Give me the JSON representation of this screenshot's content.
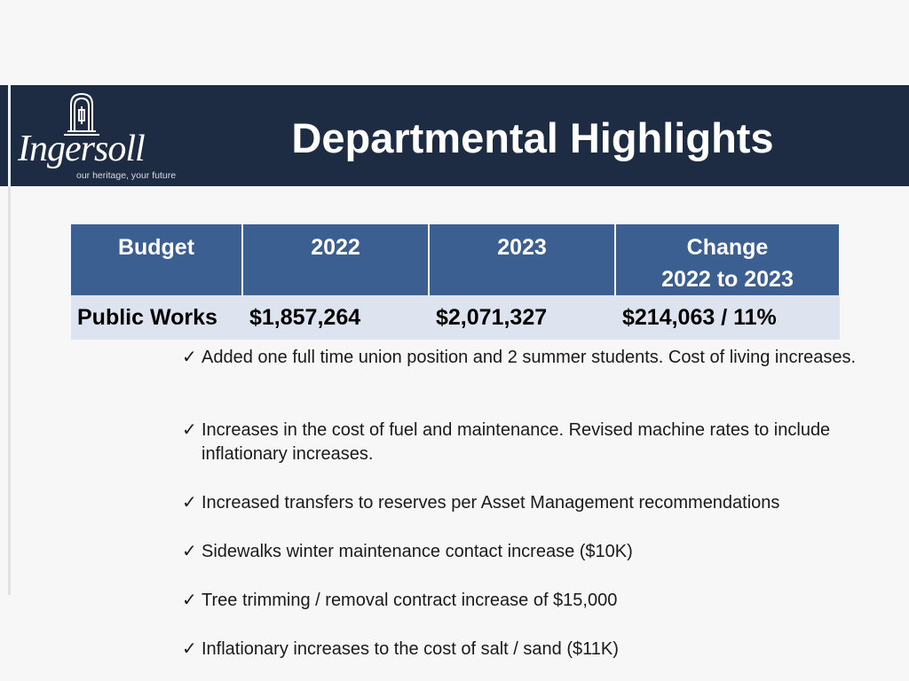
{
  "slide": {
    "title": "Departmental Highlights",
    "logo": {
      "wordmark": "Ingersoll",
      "tagline": "our heritage, your future"
    }
  },
  "table": {
    "headers": [
      "Budget",
      "2022",
      "2023",
      "Change"
    ],
    "change_sub": "2022 to 2023",
    "row": [
      "Public Works",
      "$1,857,264",
      "$2,071,327",
      "$214,063 / 11%"
    ]
  },
  "bullets": [
    "Added one full time union position and 2 summer students. Cost of living increases.",
    "Increases in the cost of fuel and maintenance. Revised machine rates to include inflationary increases.",
    "Increased transfers to reserves per Asset Management recommendations",
    "Sidewalks winter maintenance contact increase ($10K)",
    "Tree trimming / removal contract increase of $15,000",
    "Inflationary increases to the cost of salt / sand ($11K)"
  ],
  "colors": {
    "header_band": "#1e2c43",
    "table_header": "#3a5f90",
    "table_row": "#dde4ef"
  },
  "icons": {
    "bullet": "checkmark-icon",
    "logo_mark": "town-hall-tower-icon"
  }
}
